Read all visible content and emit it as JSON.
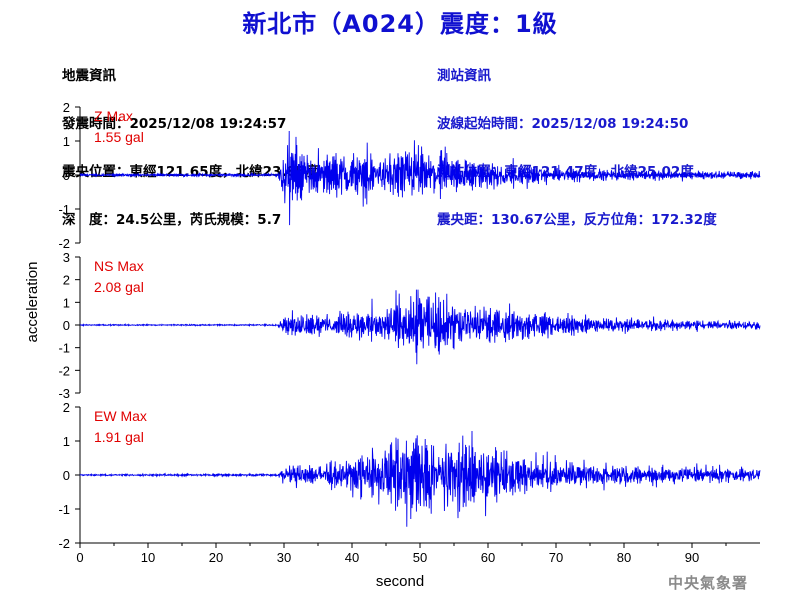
{
  "title": "新北市（A024）震度：1級",
  "earthquake_info": {
    "heading": "地震資訊",
    "origin_time": "發震時間：2025/12/08 19:24:57",
    "epicenter": "震央位置：東經121.65度，北緯23.85度",
    "depth_magnitude": "深　度：24.5公里，芮氏規模：5.7"
  },
  "station_info": {
    "heading": "測站資訊",
    "wave_start": "波線起始時間：2025/12/08 19:24:50",
    "station_location": "測站位置：東經121.47度，北緯25.02度",
    "distance_azimuth": "震央距：130.67公里，反方位角：172.32度"
  },
  "agency": "中央氣象署",
  "colors": {
    "trace": "#0000ee",
    "max_label": "#e00000",
    "title": "#1010d0",
    "station_text": "#1a1acd"
  },
  "chart_data": {
    "type": "line",
    "xlabel": "second",
    "ylabel": "acceleration",
    "xlim": [
      0,
      100
    ],
    "xticks": [
      0,
      10,
      20,
      30,
      40,
      50,
      60,
      70,
      80,
      90
    ],
    "panels": [
      {
        "component": "Z",
        "max_label": "Z Max",
        "max_value": "1.55 gal",
        "ylim": [
          -2,
          2
        ],
        "yticks": [
          -2,
          -1,
          0,
          1,
          2
        ],
        "envelope": {
          "x": [
            0,
            29,
            30,
            31,
            33,
            36,
            40,
            44,
            48,
            52,
            56,
            60,
            65,
            70,
            80,
            90,
            100
          ],
          "y": [
            0.04,
            0.05,
            0.9,
            1.3,
            0.8,
            0.7,
            0.75,
            0.7,
            1.0,
            0.8,
            0.7,
            0.55,
            0.4,
            0.25,
            0.18,
            0.15,
            0.15
          ]
        }
      },
      {
        "component": "NS",
        "max_label": "NS Max",
        "max_value": "2.08 gal",
        "ylim": [
          -3,
          3
        ],
        "yticks": [
          -3,
          -2,
          -1,
          0,
          1,
          2,
          3
        ],
        "envelope": {
          "x": [
            0,
            29,
            30,
            31,
            33,
            36,
            40,
            44,
            48,
            50,
            52,
            56,
            60,
            65,
            70,
            80,
            90,
            100
          ],
          "y": [
            0.03,
            0.04,
            0.5,
            0.7,
            0.6,
            0.55,
            0.7,
            1.0,
            1.7,
            2.1,
            1.6,
            1.2,
            1.0,
            0.8,
            0.55,
            0.35,
            0.3,
            0.25
          ]
        }
      },
      {
        "component": "EW",
        "max_label": "EW Max",
        "max_value": "1.91 gal",
        "ylim": [
          -2,
          2
        ],
        "yticks": [
          -2,
          -1,
          0,
          1,
          2
        ],
        "envelope": {
          "x": [
            0,
            29,
            30,
            31,
            33,
            36,
            40,
            44,
            48,
            50,
            52,
            56,
            58,
            60,
            65,
            70,
            80,
            90,
            100
          ],
          "y": [
            0.03,
            0.04,
            0.3,
            0.4,
            0.35,
            0.4,
            0.55,
            1.0,
            1.6,
            1.9,
            1.2,
            1.3,
            1.5,
            1.0,
            0.7,
            0.5,
            0.35,
            0.3,
            0.25
          ]
        }
      }
    ]
  }
}
